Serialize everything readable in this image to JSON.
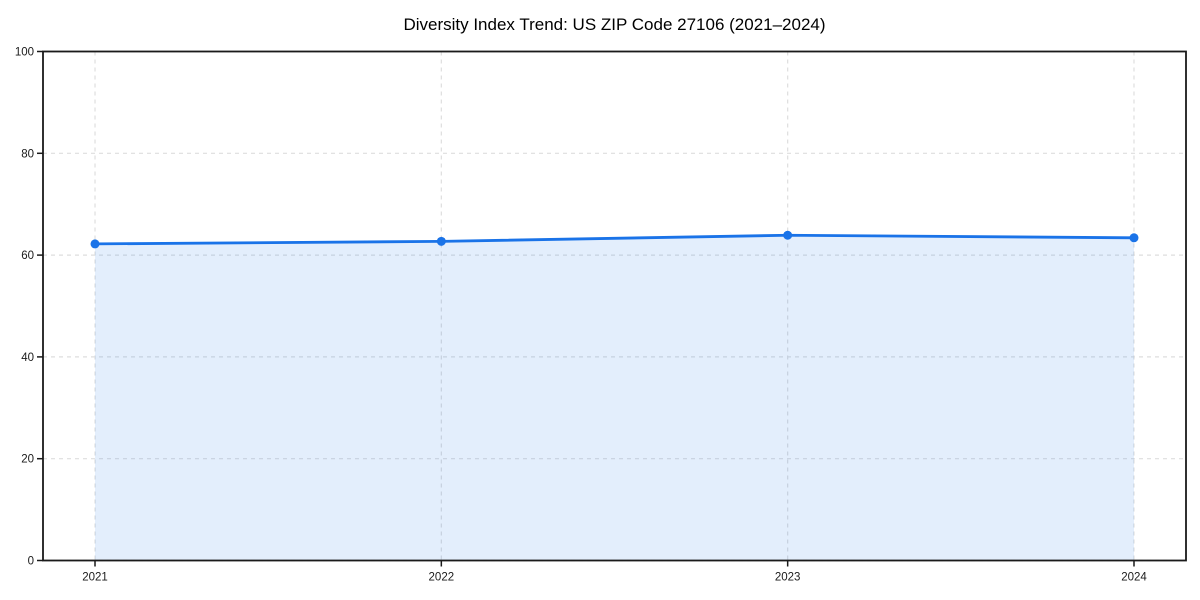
{
  "chart_data": {
    "type": "area",
    "title": "Diversity Index Trend: US ZIP Code 27106 (2021–2024)",
    "series_name": "Diversity Index",
    "x": [
      2021,
      2022,
      2023,
      2024
    ],
    "values": [
      62.2,
      62.7,
      63.9,
      63.4
    ],
    "xticks": [
      "2021",
      "2022",
      "2023",
      "2024"
    ],
    "yticks": [
      0,
      20,
      40,
      60,
      80,
      100
    ],
    "ylim": [
      0,
      100
    ],
    "xlabel": "",
    "ylabel": "",
    "grid": "dashed-both-axes",
    "legend": "none",
    "marker": "circle",
    "colors": {
      "line": "#1a73e8",
      "marker": "#1a73e8",
      "fill": "rgba(26,115,232,0.12)",
      "grid": "#dedede",
      "spine": "#1a1a1a",
      "tick_label": "#1a1a1a",
      "title": "#000000",
      "background": "#ffffff"
    }
  }
}
